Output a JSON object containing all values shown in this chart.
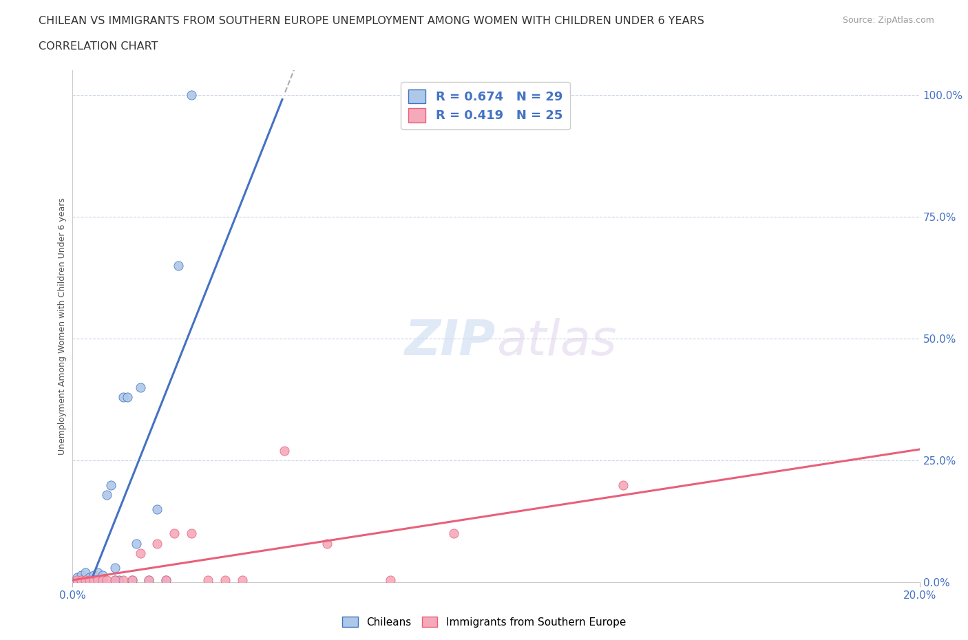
{
  "title_line1": "CHILEAN VS IMMIGRANTS FROM SOUTHERN EUROPE UNEMPLOYMENT AMONG WOMEN WITH CHILDREN UNDER 6 YEARS",
  "title_line2": "CORRELATION CHART",
  "source": "Source: ZipAtlas.com",
  "ylabel": "Unemployment Among Women with Children Under 6 years",
  "xlim": [
    0.0,
    0.2
  ],
  "ylim": [
    0.0,
    1.05
  ],
  "right_yticks": [
    0.0,
    0.25,
    0.5,
    0.75,
    1.0
  ],
  "right_yticklabels": [
    "0.0%",
    "25.0%",
    "50.0%",
    "75.0%",
    "100.0%"
  ],
  "blue_scatter_x": [
    0.001,
    0.001,
    0.002,
    0.002,
    0.003,
    0.003,
    0.004,
    0.004,
    0.005,
    0.005,
    0.006,
    0.006,
    0.007,
    0.007,
    0.008,
    0.009,
    0.01,
    0.01,
    0.011,
    0.012,
    0.013,
    0.014,
    0.015,
    0.016,
    0.018,
    0.02,
    0.022,
    0.025,
    0.028
  ],
  "blue_scatter_y": [
    0.005,
    0.01,
    0.005,
    0.015,
    0.005,
    0.02,
    0.005,
    0.01,
    0.005,
    0.015,
    0.005,
    0.02,
    0.005,
    0.015,
    0.18,
    0.2,
    0.005,
    0.03,
    0.005,
    0.38,
    0.38,
    0.005,
    0.08,
    0.4,
    0.005,
    0.15,
    0.005,
    0.65,
    1.0
  ],
  "pink_scatter_x": [
    0.001,
    0.002,
    0.003,
    0.004,
    0.005,
    0.006,
    0.007,
    0.008,
    0.01,
    0.012,
    0.014,
    0.016,
    0.018,
    0.02,
    0.022,
    0.024,
    0.028,
    0.032,
    0.036,
    0.04,
    0.05,
    0.06,
    0.075,
    0.09,
    0.13
  ],
  "pink_scatter_y": [
    0.005,
    0.005,
    0.005,
    0.005,
    0.005,
    0.005,
    0.005,
    0.005,
    0.005,
    0.005,
    0.005,
    0.06,
    0.005,
    0.08,
    0.005,
    0.1,
    0.1,
    0.005,
    0.005,
    0.005,
    0.27,
    0.08,
    0.005,
    0.1,
    0.2
  ],
  "blue_color": "#adc8e8",
  "pink_color": "#f5aabb",
  "blue_line_color": "#4472c4",
  "pink_line_color": "#e8607a",
  "blue_R": 0.674,
  "blue_N": 29,
  "pink_R": 0.419,
  "pink_N": 25,
  "watermark_zip": "ZIP",
  "watermark_atlas": "atlas",
  "background_color": "#ffffff",
  "grid_color": "#c8d4e8"
}
